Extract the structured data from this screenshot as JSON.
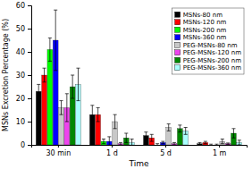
{
  "chart_data": {
    "type": "bar",
    "xlabel": "Time",
    "ylabel": "MSNs Excretion Percentage (%)",
    "categories": [
      "30 min",
      "1 d",
      "5 d",
      "1 m"
    ],
    "ylim": [
      0,
      60
    ],
    "yticks": [
      0,
      10,
      20,
      30,
      40,
      50,
      60
    ],
    "grid": false,
    "legend": "upper right",
    "series": [
      {
        "name": "MSNs-80 nm",
        "color": "#000000",
        "values": [
          23,
          13,
          4,
          0.5
        ],
        "errors": [
          3,
          4,
          1.5,
          0.5
        ]
      },
      {
        "name": "MSNs-120 nm",
        "color": "#ff0000",
        "values": [
          30,
          13,
          3,
          1.0
        ],
        "errors": [
          3,
          3,
          1.5,
          0.5
        ]
      },
      {
        "name": "MSNs-200 nm",
        "color": "#00ff00",
        "values": [
          41,
          1.5,
          0,
          0
        ],
        "errors": [
          5,
          1,
          0.5,
          0.3
        ]
      },
      {
        "name": "MSNs-360 nm",
        "color": "#0000ff",
        "values": [
          45,
          1.5,
          1,
          0
        ],
        "errors": [
          13,
          2,
          0.5,
          0.3
        ]
      },
      {
        "name": "PEG-MSNs-80 nm",
        "color": "#c8c8c8",
        "values": [
          16,
          10,
          7.5,
          1.5
        ],
        "errors": [
          3,
          3,
          1.5,
          1.0
        ]
      },
      {
        "name": "PEG-MSNs-120 nm",
        "color": "#ee44ee",
        "values": [
          16,
          0.5,
          0.5,
          0.5
        ],
        "errors": [
          6,
          0.5,
          0.5,
          0.3
        ]
      },
      {
        "name": "PEG-MSNs-200 nm",
        "color": "#008800",
        "values": [
          25,
          3,
          7,
          5
        ],
        "errors": [
          5,
          2,
          1.5,
          2.0
        ]
      },
      {
        "name": "PEG-MSNs-360 nm",
        "color": "#aaffff",
        "values": [
          26,
          1,
          6,
          1
        ],
        "errors": [
          7,
          1.5,
          1.5,
          1.0
        ]
      }
    ]
  }
}
